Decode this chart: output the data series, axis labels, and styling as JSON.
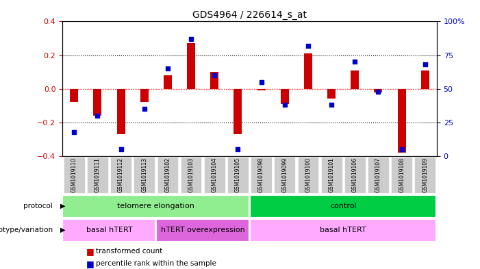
{
  "title": "GDS4964 / 226614_s_at",
  "samples": [
    "GSM1019110",
    "GSM1019111",
    "GSM1019112",
    "GSM1019113",
    "GSM1019102",
    "GSM1019103",
    "GSM1019104",
    "GSM1019105",
    "GSM1019098",
    "GSM1019099",
    "GSM1019100",
    "GSM1019101",
    "GSM1019106",
    "GSM1019107",
    "GSM1019108",
    "GSM1019109"
  ],
  "transformed_count": [
    -0.08,
    -0.16,
    -0.27,
    -0.08,
    0.08,
    0.27,
    0.1,
    -0.27,
    -0.01,
    -0.09,
    0.21,
    -0.06,
    0.11,
    -0.02,
    -0.38,
    0.11
  ],
  "percentile_rank": [
    18,
    30,
    5,
    35,
    65,
    87,
    60,
    5,
    55,
    38,
    82,
    38,
    70,
    48,
    5,
    68
  ],
  "ylim": [
    -0.4,
    0.4
  ],
  "y2lim": [
    0,
    100
  ],
  "yticks": [
    -0.4,
    -0.2,
    0.0,
    0.2,
    0.4
  ],
  "y2ticks": [
    0,
    25,
    50,
    75,
    100
  ],
  "bar_color": "#cc0000",
  "dot_color": "#0000cc",
  "zero_line_color": "#ff4444",
  "grid_color": "#000000",
  "protocol_groups": [
    {
      "label": "telomere elongation",
      "start": 0,
      "end": 8,
      "color": "#90ee90"
    },
    {
      "label": "control",
      "start": 8,
      "end": 16,
      "color": "#00cc44"
    }
  ],
  "genotype_groups": [
    {
      "label": "basal hTERT",
      "start": 0,
      "end": 4,
      "color": "#ffaaff"
    },
    {
      "label": "hTERT overexpression",
      "start": 4,
      "end": 8,
      "color": "#dd66dd"
    },
    {
      "label": "basal hTERT",
      "start": 8,
      "end": 16,
      "color": "#ffaaff"
    }
  ],
  "legend_items": [
    {
      "label": "transformed count",
      "color": "#cc0000",
      "marker": "s"
    },
    {
      "label": "percentile rank within the sample",
      "color": "#0000cc",
      "marker": "s"
    }
  ],
  "bg_color": "#ffffff",
  "tick_area_color": "#cccccc"
}
